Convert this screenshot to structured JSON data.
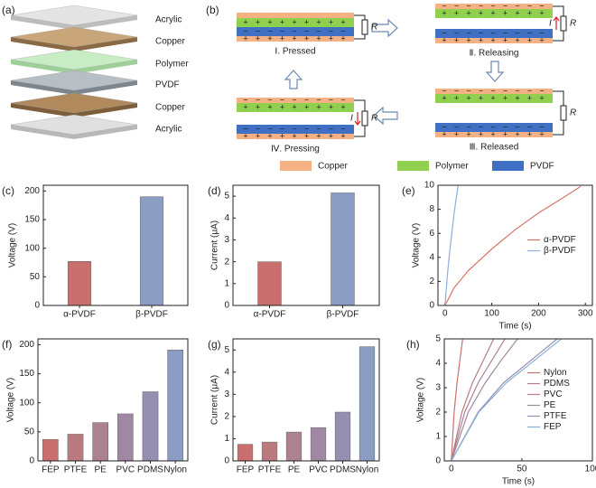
{
  "diagram_a": {
    "label": "(a)",
    "layers": [
      "Acrylic",
      "Copper",
      "Polymer",
      "PVDF",
      "Copper",
      "Acrylic"
    ]
  },
  "diagram_b": {
    "label": "(b)",
    "charge_signs": [
      "+",
      "−"
    ],
    "states": [
      {
        "label": "Ⅰ. Pressed",
        "resistor": "R"
      },
      {
        "label": "Ⅱ. Releasing",
        "resistor": "R",
        "current": "I"
      },
      {
        "label": "Ⅲ. Released",
        "resistor": "R"
      },
      {
        "label": "Ⅳ. Pressing",
        "resistor": "R",
        "current": "I"
      }
    ],
    "legend": [
      {
        "name": "Copper",
        "color": "#f4b183"
      },
      {
        "name": "Polymer",
        "color": "#8fd14f"
      },
      {
        "name": "PVDF",
        "color": "#3f70c4"
      }
    ]
  },
  "chart_data": [
    {
      "type": "bar",
      "panel_label": "(c)",
      "ylabel": "Voltage (V)",
      "categories": [
        "α-PVDF",
        "β-PVDF"
      ],
      "values": [
        77,
        190
      ],
      "colors": [
        "#c9706e",
        "#8c9dc4"
      ],
      "ylim": [
        0,
        210
      ],
      "yticks": [
        0,
        50,
        100,
        150,
        200
      ]
    },
    {
      "type": "bar",
      "panel_label": "(d)",
      "ylabel": "Current (μA)",
      "categories": [
        "α-PVDF",
        "β-PVDF"
      ],
      "values": [
        2.0,
        5.15
      ],
      "colors": [
        "#c9706e",
        "#8c9dc4"
      ],
      "ylim": [
        0,
        5.5
      ],
      "yticks": [
        0,
        1,
        2,
        3,
        4,
        5
      ]
    },
    {
      "type": "line",
      "panel_label": "(e)",
      "ylabel": "Voltage (V)",
      "xlabel": "Time (s)",
      "legend": "right",
      "xlim": [
        -15,
        315
      ],
      "xticks": [
        0,
        100,
        200,
        300
      ],
      "ylim": [
        0,
        10
      ],
      "yticks": [
        0,
        2,
        4,
        6,
        8,
        10
      ],
      "series": [
        {
          "name": "α-PVDF",
          "color": "#d9736a",
          "x": [
            0,
            20,
            50,
            100,
            150,
            200,
            250,
            290
          ],
          "values": [
            0,
            1.5,
            2.9,
            4.7,
            6.3,
            7.7,
            8.9,
            9.9
          ]
        },
        {
          "name": "β-PVDF",
          "color": "#8fb0d6",
          "x": [
            0,
            5,
            10,
            20,
            28
          ],
          "values": [
            0,
            2.5,
            4.5,
            7.8,
            10
          ]
        }
      ]
    },
    {
      "type": "bar",
      "panel_label": "(f)",
      "ylabel": "Voltage (V)",
      "categories": [
        "FEP",
        "PTFE",
        "PE",
        "PVC",
        "PDMS",
        "Nylon"
      ],
      "values": [
        37,
        46,
        66,
        81,
        119,
        191
      ],
      "colors": [
        "#c9706e",
        "#bb7a7e",
        "#ad8190",
        "#a087a2",
        "#958fb2",
        "#8c9dc4"
      ],
      "ylim": [
        0,
        210
      ],
      "yticks": [
        0,
        50,
        100,
        150,
        200
      ]
    },
    {
      "type": "bar",
      "panel_label": "(g)",
      "ylabel": "Current (μA)",
      "categories": [
        "FEP",
        "PTFE",
        "PE",
        "PVC",
        "PDMS",
        "Nylon"
      ],
      "values": [
        0.75,
        0.85,
        1.3,
        1.5,
        2.2,
        5.15
      ],
      "colors": [
        "#c9706e",
        "#bb7a7e",
        "#ad8190",
        "#a087a2",
        "#958fb2",
        "#8c9dc4"
      ],
      "ylim": [
        0,
        5.5
      ],
      "yticks": [
        0,
        1,
        2,
        3,
        4,
        5
      ]
    },
    {
      "type": "line",
      "panel_label": "(h)",
      "ylabel": "Voltage (V)",
      "xlabel": "Time (s)",
      "legend": "right",
      "xlim": [
        -5,
        100
      ],
      "xticks": [
        0,
        50,
        100
      ],
      "ylim": [
        0,
        5
      ],
      "yticks": [
        0,
        1,
        2,
        3,
        4,
        5
      ],
      "series": [
        {
          "name": "Nylon",
          "color": "#c9706e",
          "x": [
            0,
            2,
            4,
            6,
            8
          ],
          "values": [
            0,
            2.0,
            3.2,
            4.1,
            5
          ]
        },
        {
          "name": "PDMS",
          "color": "#bb7a7e",
          "x": [
            0,
            7.5,
            15,
            22.5,
            30
          ],
          "values": [
            0,
            2.0,
            3.2,
            4.1,
            5
          ]
        },
        {
          "name": "PVC",
          "color": "#ad8190",
          "x": [
            0,
            9.5,
            19,
            28.5,
            38
          ],
          "values": [
            0,
            2.0,
            3.2,
            4.1,
            5
          ]
        },
        {
          "name": "PE",
          "color": "#a087a2",
          "x": [
            0,
            12,
            24,
            35,
            47
          ],
          "values": [
            0,
            2.0,
            3.2,
            4.1,
            5
          ]
        },
        {
          "name": "PTFE",
          "color": "#958fb2",
          "x": [
            0,
            19,
            37,
            56,
            75
          ],
          "values": [
            0,
            2.0,
            3.2,
            4.1,
            5
          ]
        },
        {
          "name": "FEP",
          "color": "#8cb0d6",
          "x": [
            0,
            19.5,
            39,
            58.5,
            78
          ],
          "values": [
            0,
            2.0,
            3.2,
            4.1,
            5
          ]
        }
      ]
    }
  ]
}
